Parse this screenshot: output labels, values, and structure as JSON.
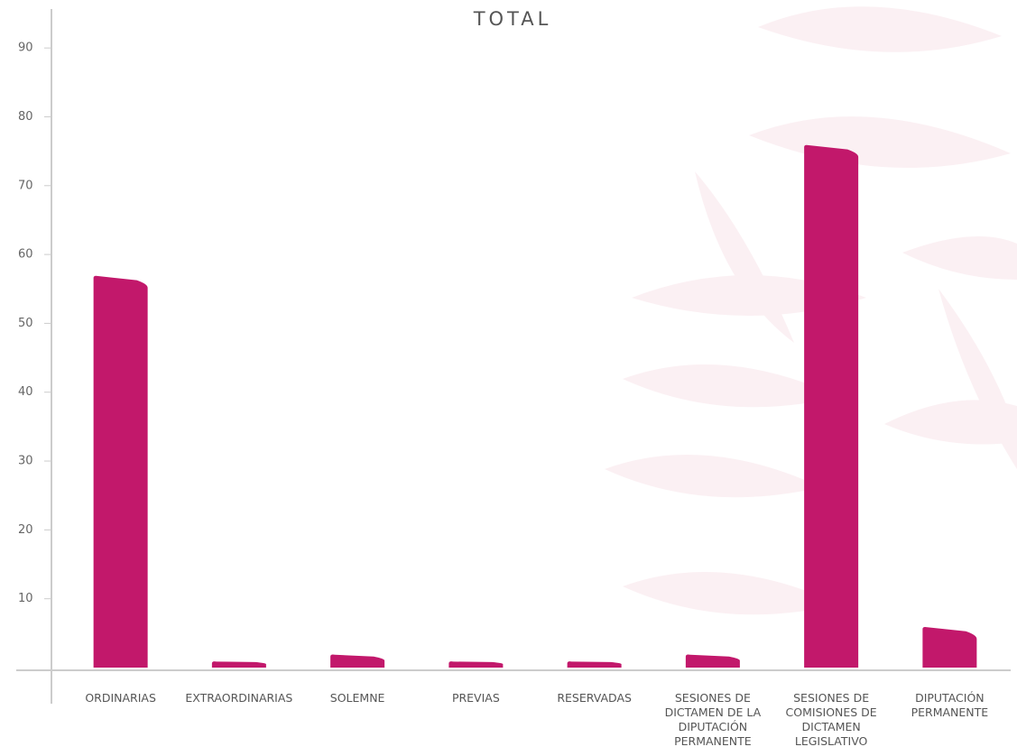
{
  "chart_data": {
    "type": "bar",
    "title": "TOTAL",
    "categories": [
      "ORDINARIAS",
      "EXTRAORDINARIAS",
      "SOLEMNE",
      "PREVIAS",
      "RESERVADAS",
      "SESIONES DE DICTAMEN DE LA DIPUTACIÓN PERMANENTE",
      "SESIONES DE COMISIONES DE DICTAMEN LEGISLATIVO",
      "DIPUTACIÓN PERMANENTE"
    ],
    "values": [
      57,
      1,
      2,
      1,
      1,
      2,
      76,
      6
    ],
    "color": "#c2186b",
    "ylim": [
      0,
      95
    ],
    "yticks": [
      10,
      20,
      30,
      40,
      50,
      60,
      70,
      80,
      90
    ]
  }
}
